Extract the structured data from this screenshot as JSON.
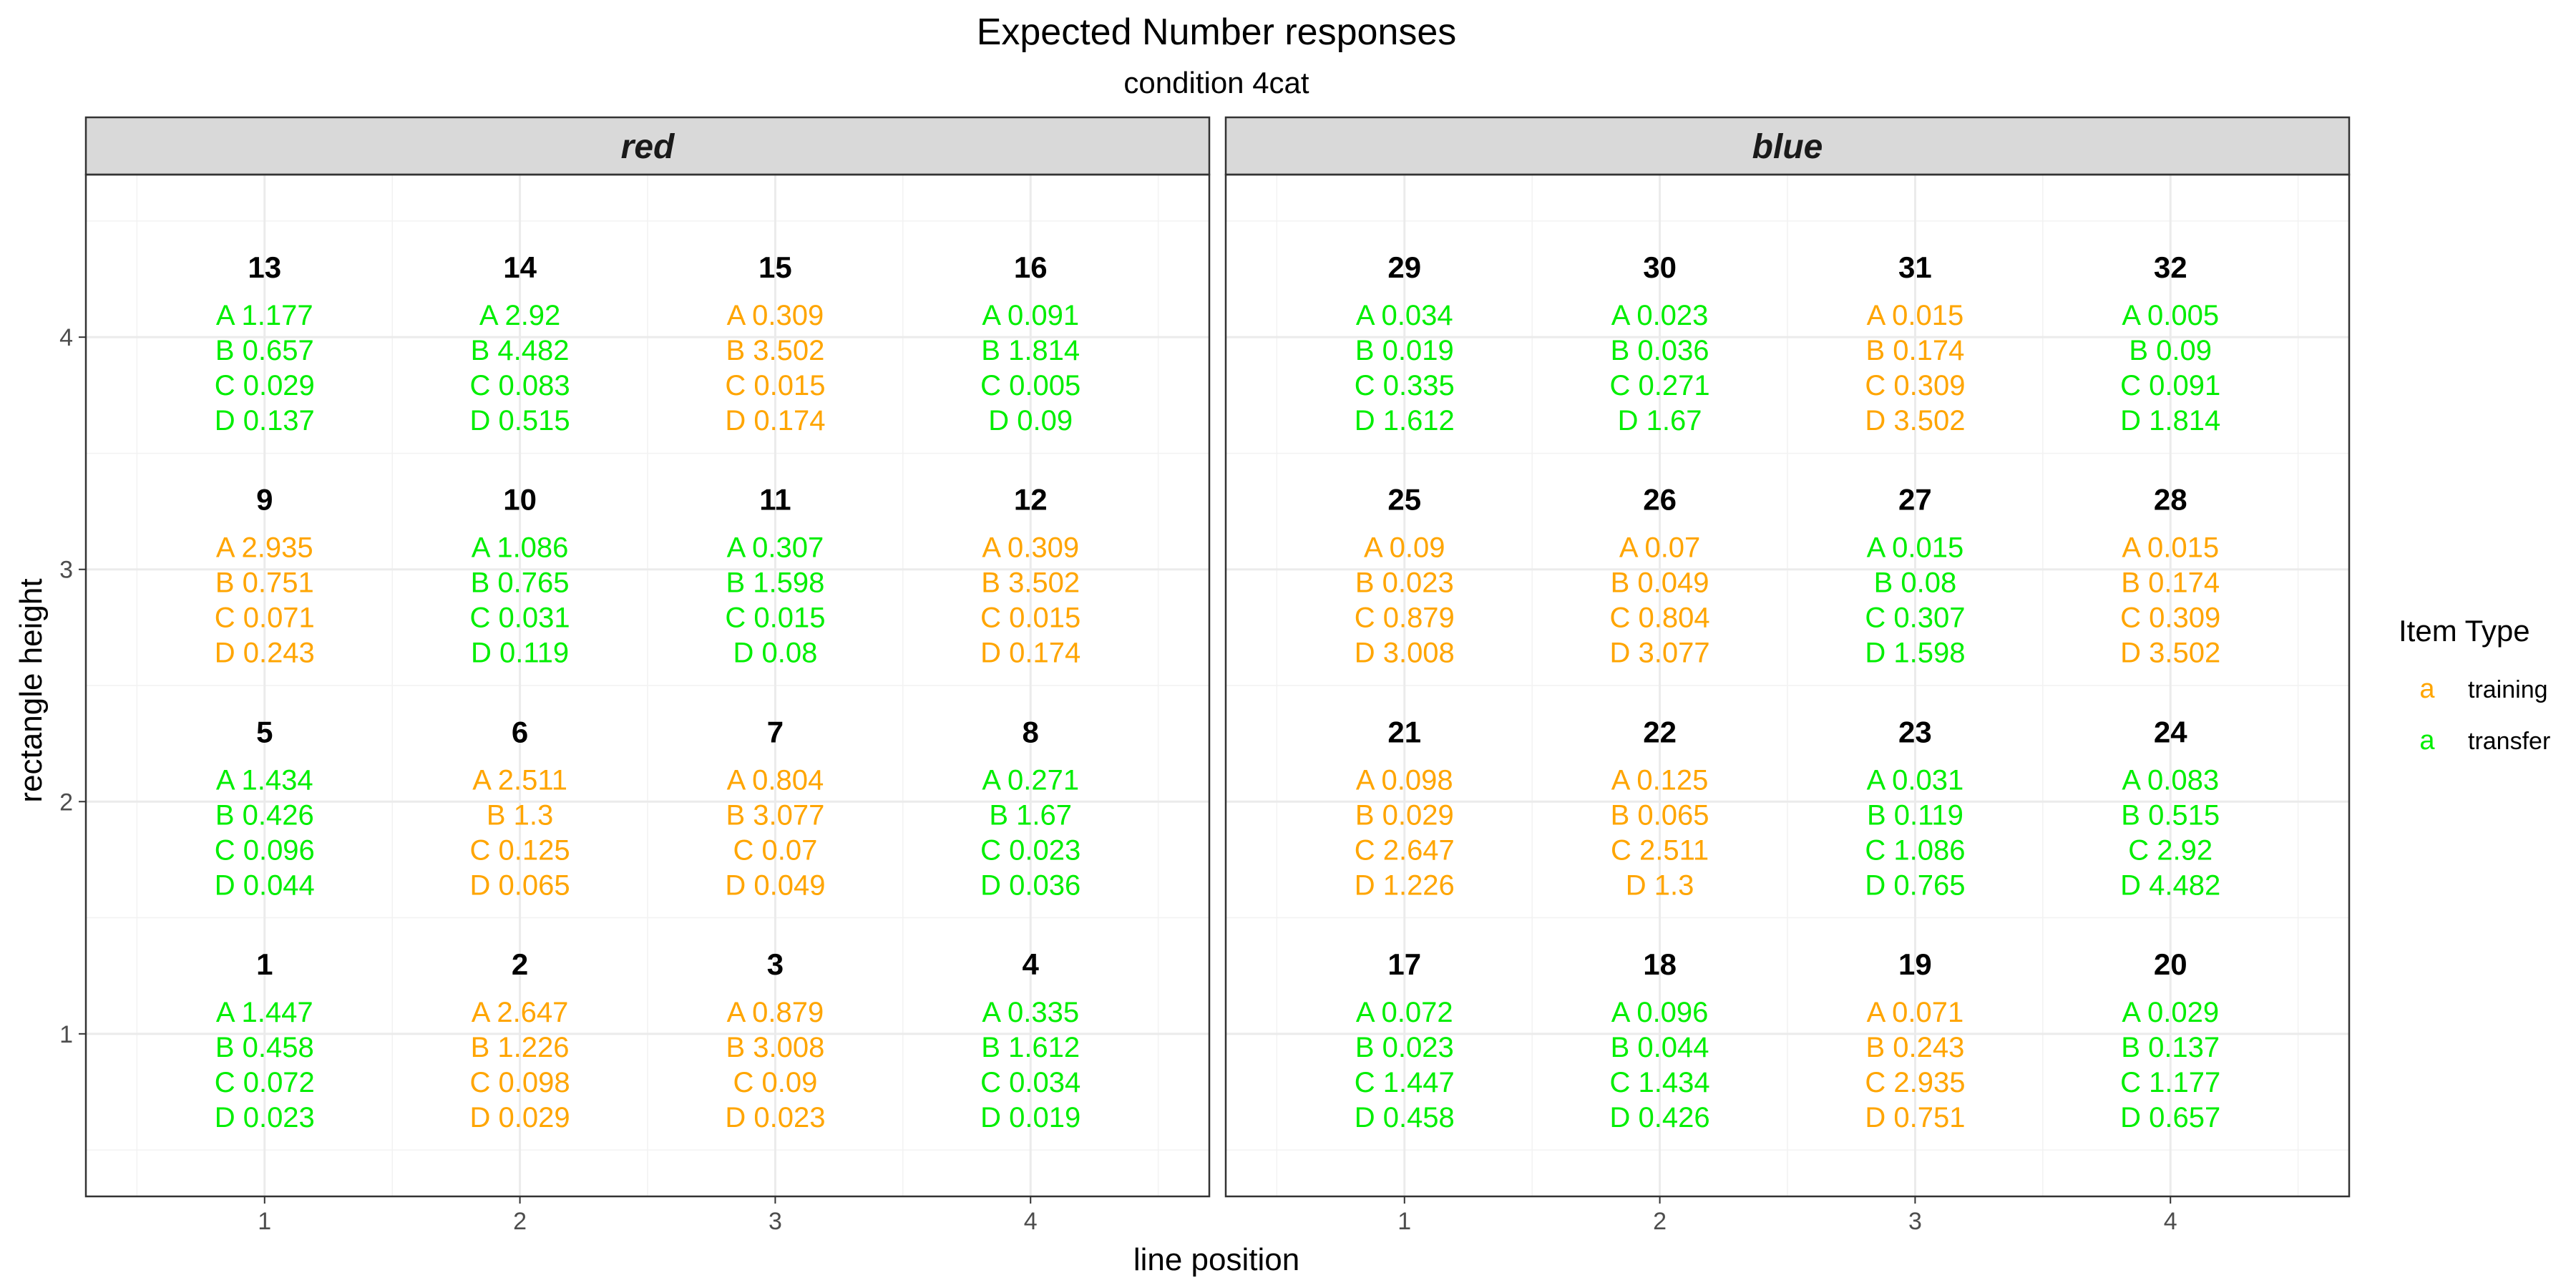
{
  "chart_data": {
    "type": "text-grid",
    "title": "Expected Number responses",
    "subtitle": "condition 4cat",
    "xlabel": "line position",
    "ylabel": "rectangle height",
    "x_ticks": [
      "1",
      "2",
      "3",
      "4"
    ],
    "y_ticks": [
      "1",
      "2",
      "3",
      "4"
    ],
    "xlim": [
      0.3,
      4.7
    ],
    "ylim": [
      0.3,
      4.7
    ],
    "grid": true,
    "legend": {
      "title": "Item Type",
      "position": "right",
      "key_glyph": "a",
      "entries": [
        {
          "name": "training",
          "color": "#FFA500"
        },
        {
          "name": "transfer",
          "color": "#00EE00"
        }
      ]
    },
    "panels": [
      {
        "label": "red",
        "cells": [
          {
            "id": 13,
            "x": 1,
            "y": 4,
            "type": "transfer",
            "responses": [
              "1.177",
              "0.657",
              "0.029",
              "0.137"
            ]
          },
          {
            "id": 14,
            "x": 2,
            "y": 4,
            "type": "transfer",
            "responses": [
              "2.92",
              "4.482",
              "0.083",
              "0.515"
            ]
          },
          {
            "id": 15,
            "x": 3,
            "y": 4,
            "type": "training",
            "responses": [
              "0.309",
              "3.502",
              "0.015",
              "0.174"
            ]
          },
          {
            "id": 16,
            "x": 4,
            "y": 4,
            "type": "transfer",
            "responses": [
              "0.091",
              "1.814",
              "0.005",
              "0.09"
            ]
          },
          {
            "id": 9,
            "x": 1,
            "y": 3,
            "type": "training",
            "responses": [
              "2.935",
              "0.751",
              "0.071",
              "0.243"
            ]
          },
          {
            "id": 10,
            "x": 2,
            "y": 3,
            "type": "transfer",
            "responses": [
              "1.086",
              "0.765",
              "0.031",
              "0.119"
            ]
          },
          {
            "id": 11,
            "x": 3,
            "y": 3,
            "type": "transfer",
            "responses": [
              "0.307",
              "1.598",
              "0.015",
              "0.08"
            ]
          },
          {
            "id": 12,
            "x": 4,
            "y": 3,
            "type": "training",
            "responses": [
              "0.309",
              "3.502",
              "0.015",
              "0.174"
            ]
          },
          {
            "id": 5,
            "x": 1,
            "y": 2,
            "type": "transfer",
            "responses": [
              "1.434",
              "0.426",
              "0.096",
              "0.044"
            ]
          },
          {
            "id": 6,
            "x": 2,
            "y": 2,
            "type": "training",
            "responses": [
              "2.511",
              "1.3",
              "0.125",
              "0.065"
            ]
          },
          {
            "id": 7,
            "x": 3,
            "y": 2,
            "type": "training",
            "responses": [
              "0.804",
              "3.077",
              "0.07",
              "0.049"
            ]
          },
          {
            "id": 8,
            "x": 4,
            "y": 2,
            "type": "transfer",
            "responses": [
              "0.271",
              "1.67",
              "0.023",
              "0.036"
            ]
          },
          {
            "id": 1,
            "x": 1,
            "y": 1,
            "type": "transfer",
            "responses": [
              "1.447",
              "0.458",
              "0.072",
              "0.023"
            ]
          },
          {
            "id": 2,
            "x": 2,
            "y": 1,
            "type": "training",
            "responses": [
              "2.647",
              "1.226",
              "0.098",
              "0.029"
            ]
          },
          {
            "id": 3,
            "x": 3,
            "y": 1,
            "type": "training",
            "responses": [
              "0.879",
              "3.008",
              "0.09",
              "0.023"
            ]
          },
          {
            "id": 4,
            "x": 4,
            "y": 1,
            "type": "transfer",
            "responses": [
              "0.335",
              "1.612",
              "0.034",
              "0.019"
            ]
          }
        ]
      },
      {
        "label": "blue",
        "cells": [
          {
            "id": 29,
            "x": 1,
            "y": 4,
            "type": "transfer",
            "responses": [
              "0.034",
              "0.019",
              "0.335",
              "1.612"
            ]
          },
          {
            "id": 30,
            "x": 2,
            "y": 4,
            "type": "transfer",
            "responses": [
              "0.023",
              "0.036",
              "0.271",
              "1.67"
            ]
          },
          {
            "id": 31,
            "x": 3,
            "y": 4,
            "type": "training",
            "responses": [
              "0.015",
              "0.174",
              "0.309",
              "3.502"
            ]
          },
          {
            "id": 32,
            "x": 4,
            "y": 4,
            "type": "transfer",
            "responses": [
              "0.005",
              "0.09",
              "0.091",
              "1.814"
            ]
          },
          {
            "id": 25,
            "x": 1,
            "y": 3,
            "type": "training",
            "responses": [
              "0.09",
              "0.023",
              "0.879",
              "3.008"
            ]
          },
          {
            "id": 26,
            "x": 2,
            "y": 3,
            "type": "training",
            "responses": [
              "0.07",
              "0.049",
              "0.804",
              "3.077"
            ]
          },
          {
            "id": 27,
            "x": 3,
            "y": 3,
            "type": "transfer",
            "responses": [
              "0.015",
              "0.08",
              "0.307",
              "1.598"
            ]
          },
          {
            "id": 28,
            "x": 4,
            "y": 3,
            "type": "training",
            "responses": [
              "0.015",
              "0.174",
              "0.309",
              "3.502"
            ]
          },
          {
            "id": 21,
            "x": 1,
            "y": 2,
            "type": "training",
            "responses": [
              "0.098",
              "0.029",
              "2.647",
              "1.226"
            ]
          },
          {
            "id": 22,
            "x": 2,
            "y": 2,
            "type": "training",
            "responses": [
              "0.125",
              "0.065",
              "2.511",
              "1.3"
            ]
          },
          {
            "id": 23,
            "x": 3,
            "y": 2,
            "type": "transfer",
            "responses": [
              "0.031",
              "0.119",
              "1.086",
              "0.765"
            ]
          },
          {
            "id": 24,
            "x": 4,
            "y": 2,
            "type": "transfer",
            "responses": [
              "0.083",
              "0.515",
              "2.92",
              "4.482"
            ]
          },
          {
            "id": 17,
            "x": 1,
            "y": 1,
            "type": "transfer",
            "responses": [
              "0.072",
              "0.023",
              "1.447",
              "0.458"
            ]
          },
          {
            "id": 18,
            "x": 2,
            "y": 1,
            "type": "transfer",
            "responses": [
              "0.096",
              "0.044",
              "1.434",
              "0.426"
            ]
          },
          {
            "id": 19,
            "x": 3,
            "y": 1,
            "type": "training",
            "responses": [
              "0.071",
              "0.243",
              "2.935",
              "0.751"
            ]
          },
          {
            "id": 20,
            "x": 4,
            "y": 1,
            "type": "transfer",
            "responses": [
              "0.029",
              "0.137",
              "1.177",
              "0.657"
            ]
          }
        ]
      }
    ],
    "response_letters": [
      "A",
      "B",
      "C",
      "D"
    ]
  }
}
